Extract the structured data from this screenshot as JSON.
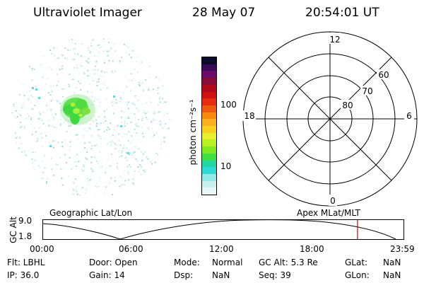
{
  "header": {
    "title": "Ultraviolet Imager",
    "date": "28 May 07",
    "time": "20:54:01 UT"
  },
  "colorbar": {
    "label": "photon cm⁻²s⁻¹",
    "ticks": [
      "100",
      "10"
    ],
    "colors": [
      "#0a0a2a",
      "#3a0a5a",
      "#6a0a6a",
      "#8a0a3a",
      "#b00a1a",
      "#d01010",
      "#e82a10",
      "#f05a10",
      "#f88a10",
      "#fab020",
      "#fad020",
      "#e8f030",
      "#b8f020",
      "#80e820",
      "#40e040",
      "#20d8a0",
      "#30d8d8",
      "#90e8e8",
      "#c8f0f0",
      "#e8f8f8"
    ]
  },
  "polar": {
    "mlt_labels": [
      "12",
      "18",
      "6",
      "0"
    ],
    "lat_labels": [
      "60",
      "70",
      "80"
    ]
  },
  "timeline": {
    "left_caption": "Geographic Lat/Lon",
    "right_caption": "Apex MLat/MLT",
    "y_label": "GC Alt",
    "y_ticks": [
      "9.0",
      "1.8"
    ],
    "x_ticks": [
      "00:00",
      "06:00",
      "12:00",
      "18:00",
      "23:59"
    ],
    "marker_color": "#d00000",
    "marker_time_hours": 20.9
  },
  "status": {
    "flt": "Flt: LBHL",
    "door": "Door: Open",
    "mode_label": "Mode:",
    "mode_value": "Normal",
    "gc_alt": "GC Alt: 5.3 Re",
    "glat_label": "GLat:",
    "glat_value": "NaN",
    "ip": "IP: 36.0",
    "gain": "Gain: 14",
    "dsp_label": "Dsp:",
    "dsp_value": "NaN",
    "seq": "Seq: 39",
    "glon_label": "GLon:",
    "glon_value": "NaN"
  }
}
